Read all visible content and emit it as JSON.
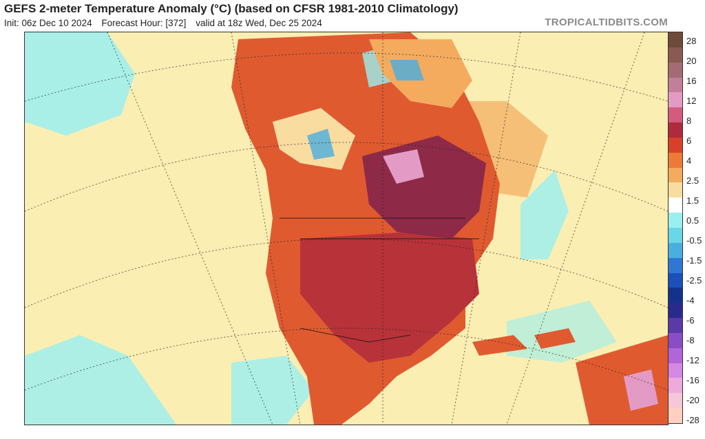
{
  "header": {
    "title": "GEFS 2-meter Temperature Anomaly (°C) (based on CFSR 1981-2010 Climatology)",
    "init": "Init: 06z Dec 10 2024",
    "forecast_hour": "Forecast Hour: [372]",
    "valid": "valid at 18z Wed, Dec 25 2024",
    "brand": "TROPICALTIDBITS.COM"
  },
  "legend": {
    "labels": [
      "28",
      "20",
      "16",
      "12",
      "8",
      "6",
      "4",
      "2.5",
      "1.5",
      "0.5",
      "-0.5",
      "-1.5",
      "-2.5",
      "-4",
      "-6",
      "-8",
      "-12",
      "-16",
      "-20",
      "-28"
    ],
    "colors": [
      "#6e4a3a",
      "#8a5a52",
      "#a36c74",
      "#c27f9a",
      "#e39bc6",
      "#d45a7e",
      "#b02a3e",
      "#d8402a",
      "#ee7a38",
      "#f4ab5e",
      "#f8dca0",
      "#ffffff",
      "#9aeff0",
      "#6ad7e8",
      "#4aaee0",
      "#2e78d4",
      "#1c4fb8",
      "#12328e",
      "#2a2a8c",
      "#5a3aa8",
      "#8a4ec4",
      "#b066d8",
      "#d48ae4",
      "#eeaadc",
      "#f4c8d8",
      "#ffd0c0"
    ]
  },
  "map": {
    "colors": {
      "ocean_neutral": "#fbeeb2",
      "warm_light": "#f4ab5e",
      "warm": "#e05a30",
      "hot": "#b8323a",
      "very_hot": "#8e2a48",
      "extreme": "#e39bc6",
      "cool": "#9aeff0",
      "cold": "#4aaee0"
    }
  }
}
